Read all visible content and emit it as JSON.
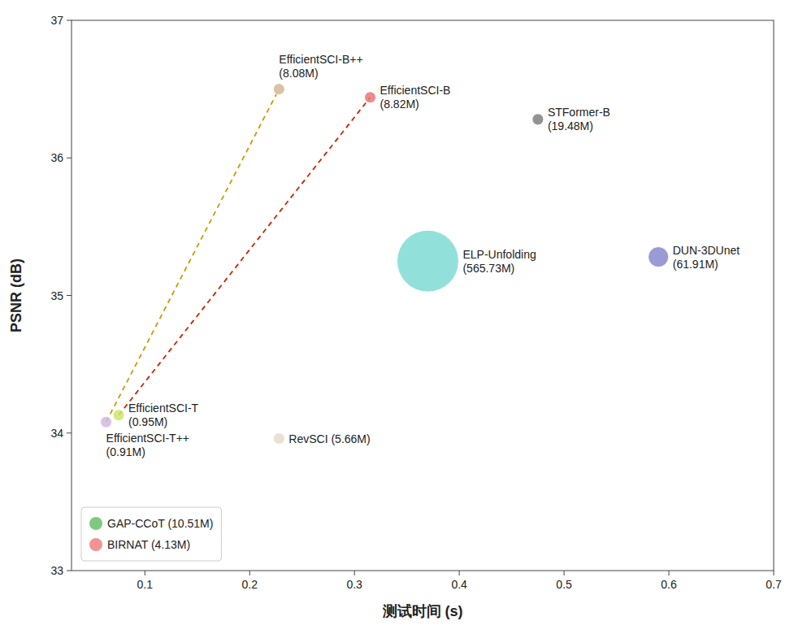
{
  "chart_data": {
    "type": "scatter",
    "xlabel": "测试时间 (s)",
    "ylabel": "PSNR (dB)",
    "xlim": [
      0.03,
      0.7
    ],
    "ylim": [
      33.0,
      37.0
    ],
    "xticks": [
      0.1,
      0.2,
      0.3,
      0.4,
      0.5,
      0.6,
      0.7
    ],
    "yticks": [
      33,
      34,
      35,
      36,
      37
    ],
    "legend": "lower left",
    "series": [
      {
        "type": "scatter",
        "x": [
          0.063,
          0.075,
          0.228,
          0.315,
          0.228,
          0.37,
          0.475,
          0.59
        ],
        "values": [
          34.08,
          34.13,
          36.5,
          36.44,
          33.96,
          35.25,
          36.28,
          35.28
        ],
        "sizes": [
          0.91,
          0.95,
          8.08,
          8.82,
          5.66,
          565.73,
          19.48,
          61.91
        ],
        "labels": [
          "EfficientSCI-T++\n(0.91M)",
          "EfficientSCI-T\n(0.95M)",
          "EfficientSCI-B++\n(8.08M)",
          "EfficientSCI-B\n(8.82M)",
          "RevSCI (5.66M)",
          "ELP-Unfolding\n(565.73M)",
          "STFormer-B\n(19.48M)",
          "DUN-3DUnet\n(61.91M)"
        ],
        "colors": [
          "#d4b8e0",
          "#cce86b",
          "#d4b896",
          "#e87878",
          "#e8dcc8",
          "#7edcd4",
          "#808080",
          "#8888cc"
        ]
      },
      {
        "type": "line",
        "line_style": "dashed",
        "color": "#cc9900",
        "x": [
          0.063,
          0.228
        ],
        "values": [
          34.08,
          36.5
        ]
      },
      {
        "type": "line",
        "line_style": "dashed",
        "color": "#cc2200",
        "x": [
          0.075,
          0.315
        ],
        "values": [
          34.13,
          36.44
        ]
      },
      {
        "name": "GAP-CCoT (10.51M)",
        "color": "#6abf6a",
        "values": []
      },
      {
        "name": "BIRNAT (4.13M)",
        "color": "#f08080",
        "values": []
      }
    ]
  }
}
